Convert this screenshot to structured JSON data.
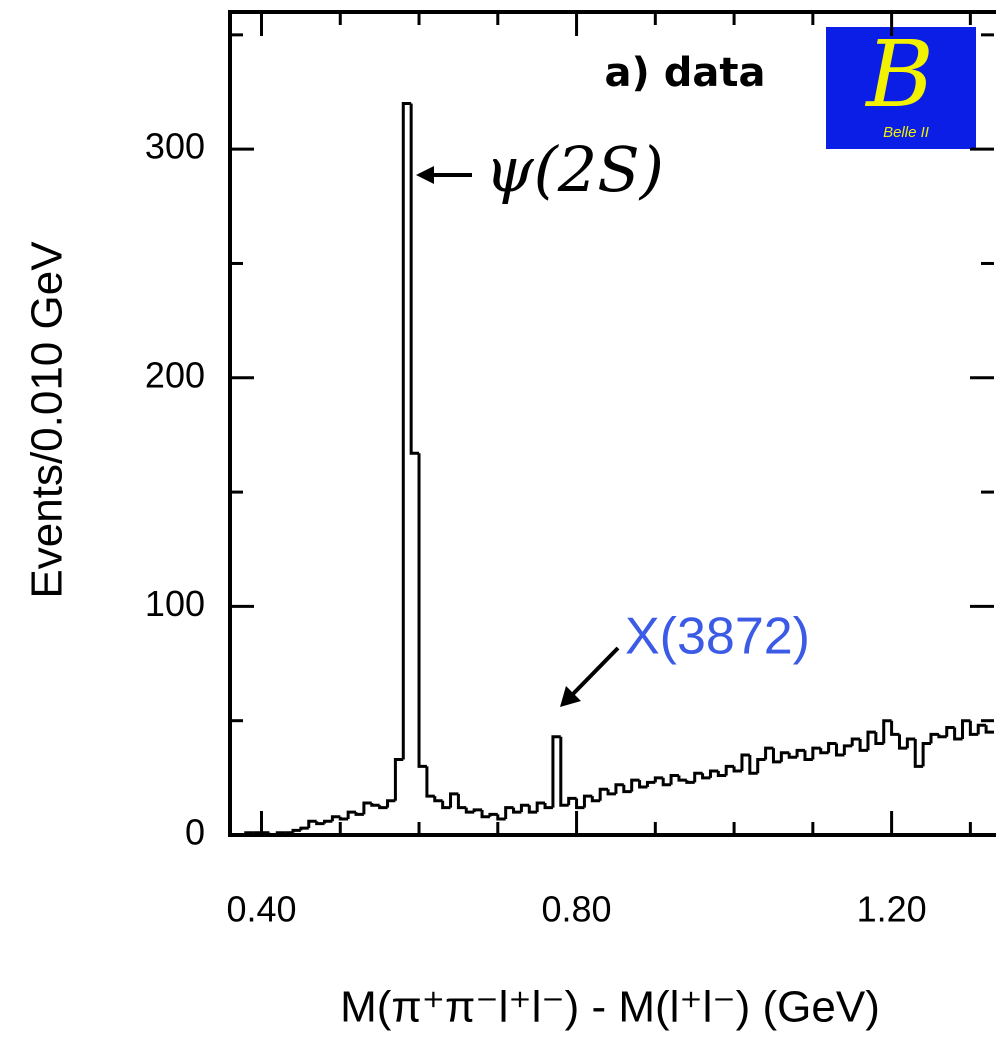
{
  "chart_data": {
    "type": "histogram",
    "xlabel": "M(π⁺π⁻l⁺l⁻) - M(l⁺l⁻) (GeV)",
    "ylabel": "Events/0.010 GeV",
    "annotations": [
      "a) data",
      "ψ(2S)",
      "X(3872)"
    ],
    "logo": {
      "symbol": "B",
      "text": "Belle II"
    },
    "color": "#000000",
    "bins": [
      0.36,
      0.37,
      0.38,
      0.39,
      0.4,
      0.41,
      0.42,
      0.43,
      0.44,
      0.45,
      0.46,
      0.47,
      0.48,
      0.49,
      0.5,
      0.51,
      0.52,
      0.53,
      0.54,
      0.55,
      0.56,
      0.57,
      0.58,
      0.59,
      0.6,
      0.61,
      0.62,
      0.63,
      0.64,
      0.65,
      0.66,
      0.67,
      0.68,
      0.69,
      0.7,
      0.71,
      0.72,
      0.73,
      0.74,
      0.75,
      0.76,
      0.77,
      0.78,
      0.79,
      0.8,
      0.81,
      0.82,
      0.83,
      0.84,
      0.85,
      0.86,
      0.87,
      0.88,
      0.89,
      0.9,
      0.91,
      0.92,
      0.93,
      0.94,
      0.95,
      0.96,
      0.97,
      0.98,
      0.99,
      1.0,
      1.01,
      1.02,
      1.03,
      1.04,
      1.05,
      1.06,
      1.07,
      1.08,
      1.09,
      1.1,
      1.11,
      1.12,
      1.13,
      1.14,
      1.15,
      1.16,
      1.17,
      1.18,
      1.19,
      1.2,
      1.21,
      1.22,
      1.23,
      1.24,
      1.25,
      1.26,
      1.27,
      1.28,
      1.29,
      1.3,
      1.31,
      1.32,
      1.33
    ],
    "values": [
      0,
      0,
      1,
      1,
      1,
      0,
      1,
      1,
      2,
      3,
      6,
      5,
      6,
      8,
      7,
      10,
      9,
      14,
      13,
      12,
      15,
      33,
      320,
      167,
      30,
      17,
      15,
      12,
      18,
      12,
      10,
      11,
      8,
      9,
      7,
      12,
      10,
      13,
      10,
      14,
      12,
      43,
      13,
      16,
      12,
      17,
      15,
      20,
      18,
      22,
      19,
      24,
      21,
      23,
      25,
      22,
      26,
      24,
      23,
      27,
      25,
      28,
      26,
      30,
      28,
      35,
      27,
      33,
      38,
      32,
      36,
      34,
      37,
      33,
      38,
      36,
      40,
      35,
      39,
      42,
      37,
      45,
      40,
      50,
      44,
      38,
      42,
      30,
      40,
      44,
      43,
      47,
      42,
      50,
      44,
      48,
      45
    ],
    "xlim": [
      0.36,
      1.33
    ],
    "ylim": [
      0,
      360
    ],
    "xticks": [
      {
        "value": 0.4,
        "label": "0.40"
      },
      {
        "value": 0.8,
        "label": "0.80"
      },
      {
        "value": 1.2,
        "label": "1.20"
      }
    ],
    "xminor_ticks": [
      0.5,
      0.6,
      0.7,
      0.9,
      1.0,
      1.1,
      1.3
    ],
    "yticks": [
      0,
      100,
      200,
      300
    ],
    "yminor_ticks": [
      50,
      150,
      250,
      350
    ]
  }
}
